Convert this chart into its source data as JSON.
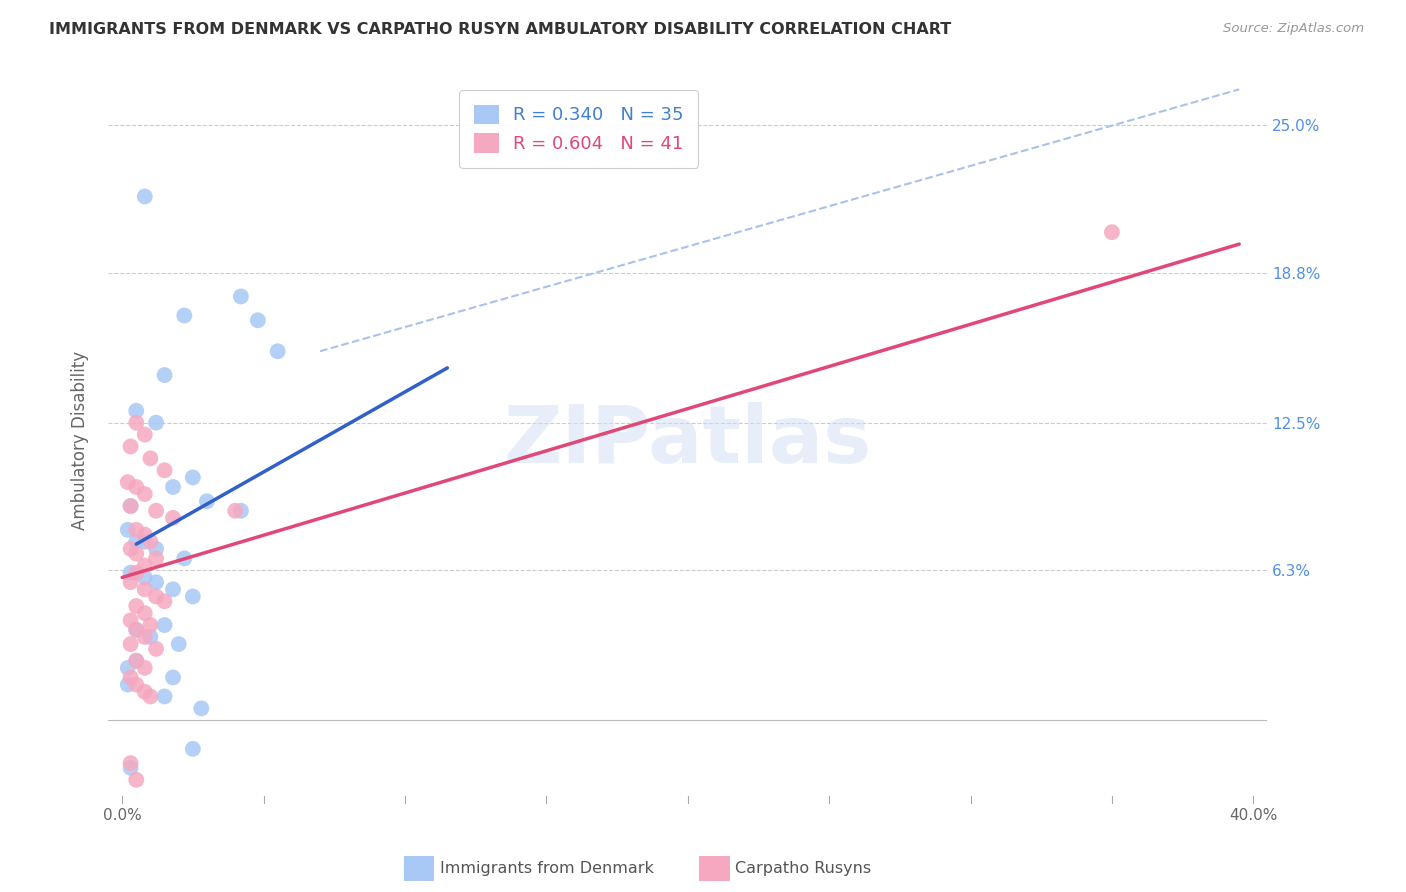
{
  "title": "IMMIGRANTS FROM DENMARK VS CARPATHO RUSYN AMBULATORY DISABILITY CORRELATION CHART",
  "source": "Source: ZipAtlas.com",
  "ylabel": "Ambulatory Disability",
  "xlim": [
    -0.005,
    0.405
  ],
  "ylim": [
    -0.035,
    0.27
  ],
  "xtick_positions": [
    0.0,
    0.05,
    0.1,
    0.15,
    0.2,
    0.25,
    0.3,
    0.35,
    0.4
  ],
  "xtick_labels_shown": {
    "0.0": "0.0%",
    "0.40": "40.0%"
  },
  "yticks": [
    0.063,
    0.125,
    0.188,
    0.25
  ],
  "yticklabels": [
    "6.3%",
    "12.5%",
    "18.8%",
    "25.0%"
  ],
  "legend1_R": "0.340",
  "legend1_N": "35",
  "legend2_R": "0.604",
  "legend2_N": "41",
  "legend1_label": "Immigrants from Denmark",
  "legend2_label": "Carpatho Rusyns",
  "blue_color": "#A8C8F5",
  "pink_color": "#F5A8C0",
  "blue_line_color": "#3060C8",
  "pink_line_color": "#E04878",
  "dashed_line_color": "#A0BCE8",
  "watermark": "ZIPatlas",
  "blue_scatter_x": [
    0.008,
    0.022,
    0.015,
    0.042,
    0.055,
    0.005,
    0.012,
    0.002,
    0.008,
    0.003,
    0.018,
    0.025,
    0.005,
    0.012,
    0.022,
    0.018,
    0.03,
    0.048,
    0.003,
    0.008,
    0.012,
    0.025,
    0.015,
    0.005,
    0.01,
    0.02,
    0.042,
    0.005,
    0.002,
    0.018,
    0.002,
    0.028,
    0.015,
    0.025,
    0.003
  ],
  "blue_scatter_y": [
    0.22,
    0.17,
    0.145,
    0.178,
    0.155,
    0.13,
    0.125,
    0.08,
    0.075,
    0.09,
    0.098,
    0.102,
    0.075,
    0.072,
    0.068,
    0.055,
    0.092,
    0.168,
    0.062,
    0.06,
    0.058,
    0.052,
    0.04,
    0.038,
    0.035,
    0.032,
    0.088,
    0.025,
    0.022,
    0.018,
    0.015,
    0.005,
    0.01,
    -0.012,
    -0.02
  ],
  "pink_scatter_x": [
    0.005,
    0.008,
    0.003,
    0.01,
    0.015,
    0.002,
    0.005,
    0.008,
    0.003,
    0.012,
    0.018,
    0.005,
    0.008,
    0.01,
    0.003,
    0.005,
    0.012,
    0.008,
    0.005,
    0.003,
    0.008,
    0.012,
    0.015,
    0.005,
    0.008,
    0.003,
    0.01,
    0.005,
    0.008,
    0.003,
    0.012,
    0.005,
    0.008,
    0.04,
    0.003,
    0.005,
    0.008,
    0.01,
    0.003,
    0.005,
    0.35
  ],
  "pink_scatter_y": [
    0.125,
    0.12,
    0.115,
    0.11,
    0.105,
    0.1,
    0.098,
    0.095,
    0.09,
    0.088,
    0.085,
    0.08,
    0.078,
    0.075,
    0.072,
    0.07,
    0.068,
    0.065,
    0.062,
    0.058,
    0.055,
    0.052,
    0.05,
    0.048,
    0.045,
    0.042,
    0.04,
    0.038,
    0.035,
    0.032,
    0.03,
    0.025,
    0.022,
    0.088,
    0.018,
    0.015,
    0.012,
    0.01,
    -0.018,
    -0.025,
    0.205
  ],
  "blue_line_x": [
    0.005,
    0.115
  ],
  "blue_line_y": [
    0.074,
    0.148
  ],
  "pink_line_x": [
    0.0,
    0.395
  ],
  "pink_line_y": [
    0.06,
    0.2
  ],
  "diag_line_x": [
    0.07,
    0.395
  ],
  "diag_line_y": [
    0.155,
    0.265
  ]
}
